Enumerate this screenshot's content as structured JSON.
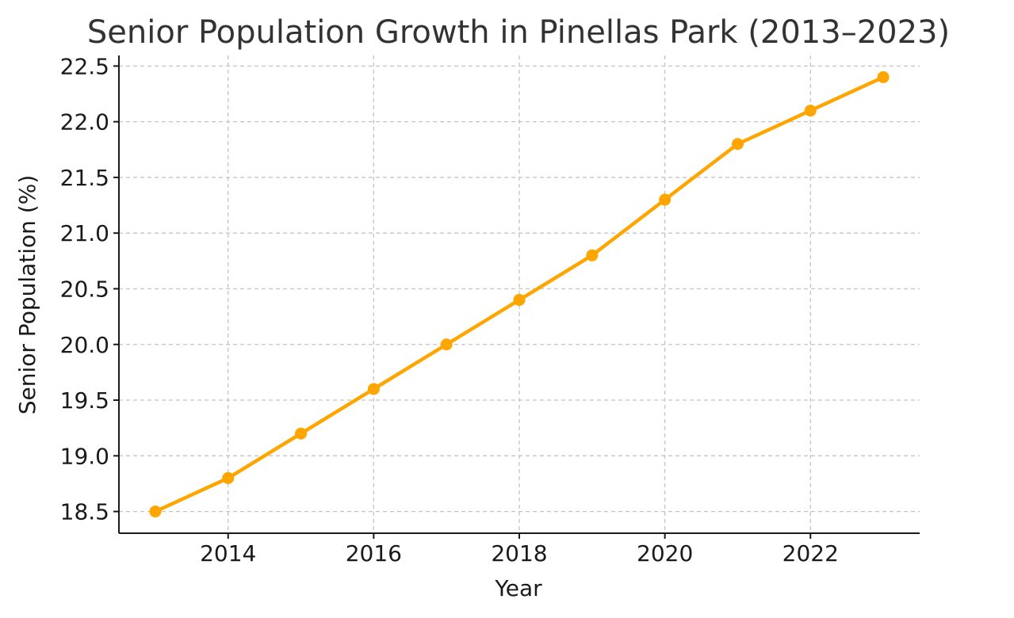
{
  "chart_data": {
    "type": "line",
    "title": "Senior Population Growth in Pinellas Park (2013–2023)",
    "xlabel": "Year",
    "ylabel": "Senior Population (%)",
    "x": [
      2013,
      2014,
      2015,
      2016,
      2017,
      2018,
      2019,
      2020,
      2021,
      2022,
      2023
    ],
    "series": [
      {
        "values": [
          18.5,
          18.8,
          19.2,
          19.6,
          20.0,
          20.4,
          20.8,
          21.3,
          21.8,
          22.1,
          22.4
        ],
        "color": "#FFA500"
      }
    ],
    "xlim": [
      2012.5,
      2023.5
    ],
    "ylim": [
      18.305,
      22.595
    ],
    "xticks": [
      "2014",
      "2016",
      "2018",
      "2020",
      "2022"
    ],
    "yticks": [
      "18.5",
      "19.0",
      "19.5",
      "20.0",
      "20.5",
      "21.0",
      "21.5",
      "22.0",
      "22.5"
    ],
    "grid": true,
    "marker": "circle"
  }
}
